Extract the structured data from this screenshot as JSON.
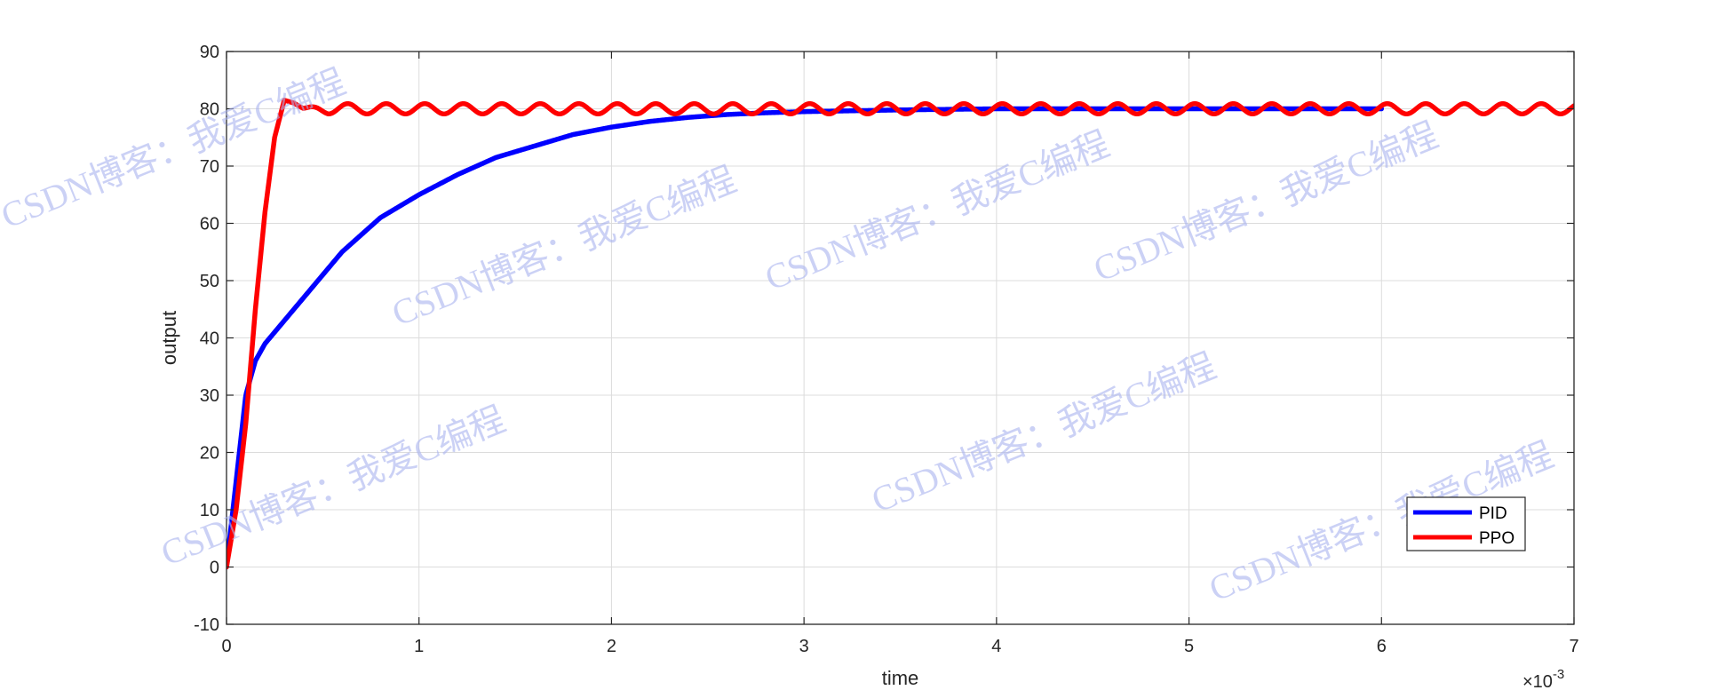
{
  "chart_data": {
    "type": "line",
    "xlabel": "time",
    "ylabel": "output",
    "x_exponent_label": "×10",
    "x_exponent_power": "-3",
    "xlim": [
      0,
      7
    ],
    "ylim": [
      -10,
      90
    ],
    "x_ticks": [
      0,
      1,
      2,
      3,
      4,
      5,
      6,
      7
    ],
    "y_ticks": [
      -10,
      0,
      10,
      20,
      30,
      40,
      50,
      60,
      70,
      80,
      90
    ],
    "x_tick_labels": [
      "0",
      "1",
      "2",
      "3",
      "4",
      "5",
      "6",
      "7"
    ],
    "y_tick_labels": [
      "-10",
      "0",
      "10",
      "20",
      "30",
      "40",
      "50",
      "60",
      "70",
      "80",
      "90"
    ],
    "grid": true,
    "legend_position": "bottom-right",
    "series": [
      {
        "name": "PID",
        "color": "#0000ff",
        "x_end": 6.0,
        "points": [
          [
            0,
            0
          ],
          [
            0.05,
            15
          ],
          [
            0.1,
            30
          ],
          [
            0.15,
            36
          ],
          [
            0.2,
            39
          ],
          [
            0.3,
            43
          ],
          [
            0.4,
            47
          ],
          [
            0.5,
            51
          ],
          [
            0.6,
            55
          ],
          [
            0.7,
            58
          ],
          [
            0.8,
            61
          ],
          [
            0.9,
            63
          ],
          [
            1.0,
            65
          ],
          [
            1.2,
            68.5
          ],
          [
            1.4,
            71.5
          ],
          [
            1.6,
            73.5
          ],
          [
            1.8,
            75.5
          ],
          [
            2.0,
            76.8
          ],
          [
            2.2,
            77.8
          ],
          [
            2.4,
            78.5
          ],
          [
            2.6,
            79
          ],
          [
            2.8,
            79.3
          ],
          [
            3.0,
            79.5
          ],
          [
            3.5,
            79.8
          ],
          [
            4.0,
            80
          ],
          [
            5.0,
            80
          ],
          [
            6.0,
            80
          ]
        ]
      },
      {
        "name": "PPO",
        "color": "#ff0000",
        "x_end": 7.0,
        "points": [
          [
            0,
            0
          ],
          [
            0.05,
            10
          ],
          [
            0.1,
            25
          ],
          [
            0.15,
            45
          ],
          [
            0.2,
            62
          ],
          [
            0.25,
            75
          ],
          [
            0.3,
            81.5
          ],
          [
            0.35,
            81
          ],
          [
            0.4,
            80
          ],
          [
            0.6,
            80
          ],
          [
            7.0,
            80
          ]
        ],
        "oscillation_amplitude": 0.9,
        "oscillation_period": 0.2
      }
    ]
  },
  "watermark": {
    "text": "CSDN博客：我爱C编程"
  }
}
